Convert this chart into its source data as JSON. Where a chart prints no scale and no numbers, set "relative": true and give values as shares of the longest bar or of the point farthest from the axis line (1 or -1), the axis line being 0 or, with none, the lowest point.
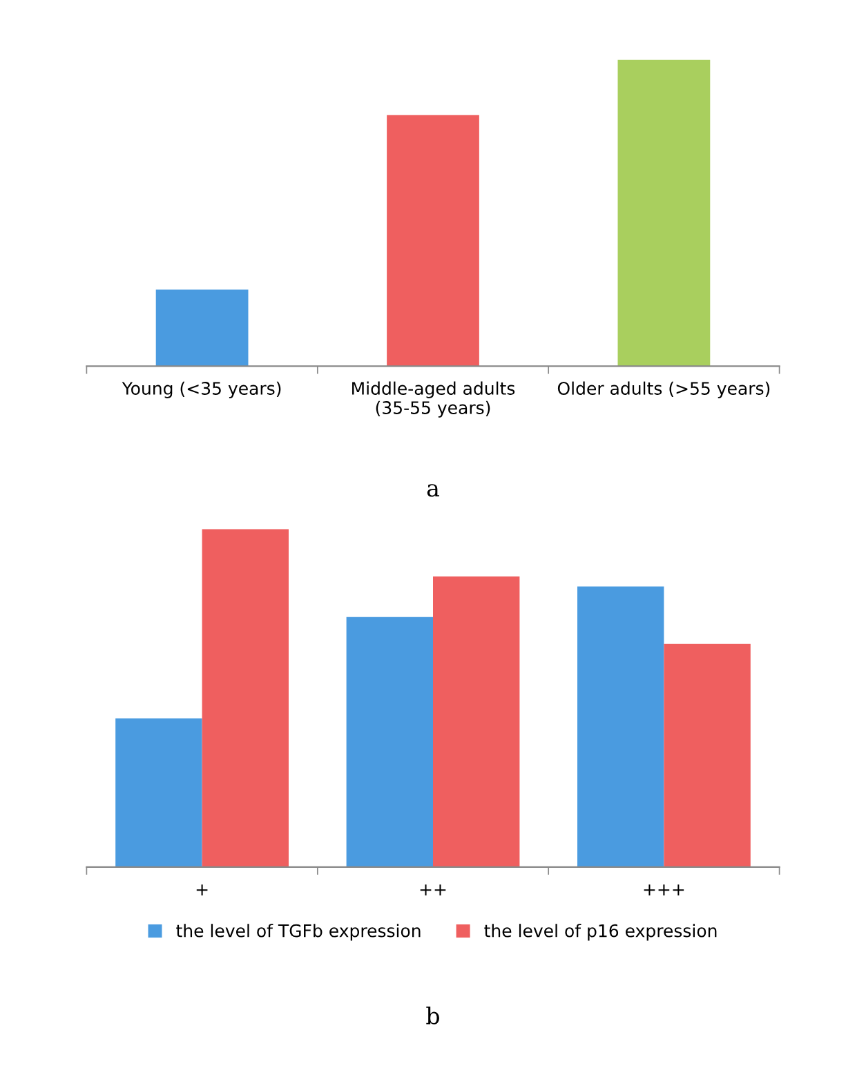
{
  "chart_data": [
    {
      "type": "bar",
      "relative": true,
      "categories": [
        "Young (<35 years)",
        "Middle-aged adults\n(35-55 years)",
        "Older adults (>55 years)"
      ],
      "values": [
        0.25,
        0.82,
        1
      ],
      "colors": [
        "#4a9be0",
        "#ef5f5f",
        "#a9cf5e"
      ],
      "annotations": [
        "a"
      ],
      "legend": false
    },
    {
      "type": "bar",
      "relative": true,
      "categories": [
        "+",
        "++",
        "+++"
      ],
      "series": [
        {
          "name": "the level of TGFb expression",
          "color": "#4a9be0",
          "values": [
            0.44,
            0.74,
            0.83
          ]
        },
        {
          "name": "the level of p16 expression",
          "color": "#ef5f5f",
          "values": [
            1,
            0.86,
            0.66
          ]
        }
      ],
      "annotations": [
        "b"
      ],
      "legend": "bottom"
    }
  ]
}
